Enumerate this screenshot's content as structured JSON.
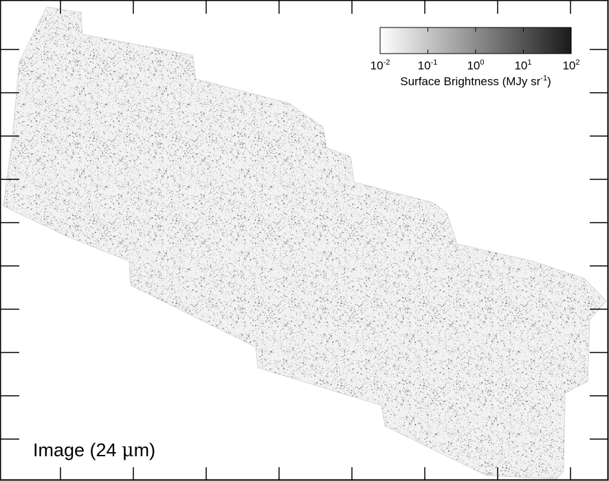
{
  "image_label": {
    "prefix": "Image (24 ",
    "unit_glyph": "μ",
    "suffix": "m)"
  },
  "colorbar": {
    "scale": "log",
    "range": [
      0.01,
      100
    ],
    "gradient": [
      "#ffffff",
      "#1a1a1a"
    ],
    "tick_labels": [
      {
        "base": "10",
        "exp": "-2"
      },
      {
        "base": "10",
        "exp": "-1"
      },
      {
        "base": "10",
        "exp": "0"
      },
      {
        "base": "10",
        "exp": "1"
      },
      {
        "base": "10",
        "exp": "2"
      }
    ],
    "title_prefix": "Surface Brightness (MJy sr",
    "title_exp": "-1",
    "title_suffix": ")"
  },
  "mosaic": {
    "noise_color": "#555555",
    "background": "#ffffff"
  }
}
